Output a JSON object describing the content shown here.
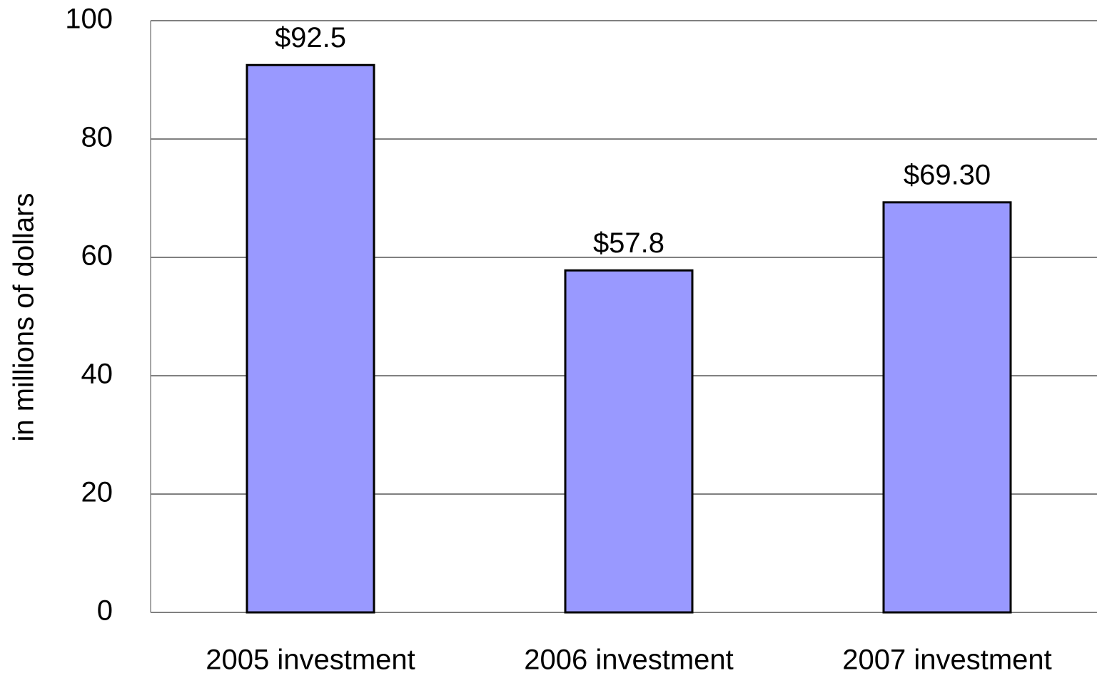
{
  "chart_data": {
    "type": "bar",
    "y_label": "in millions of dollars",
    "categories": [
      "2005 investment",
      "2006 investment",
      "2007 investment"
    ],
    "values": [
      92.5,
      57.8,
      69.3
    ],
    "value_labels": [
      "$92.5",
      "$57.8",
      "$69.30"
    ],
    "color": "#9999ff",
    "ylim": [
      0,
      100
    ],
    "yticks": [
      0,
      20,
      40,
      60,
      80,
      100
    ],
    "grid": true
  }
}
